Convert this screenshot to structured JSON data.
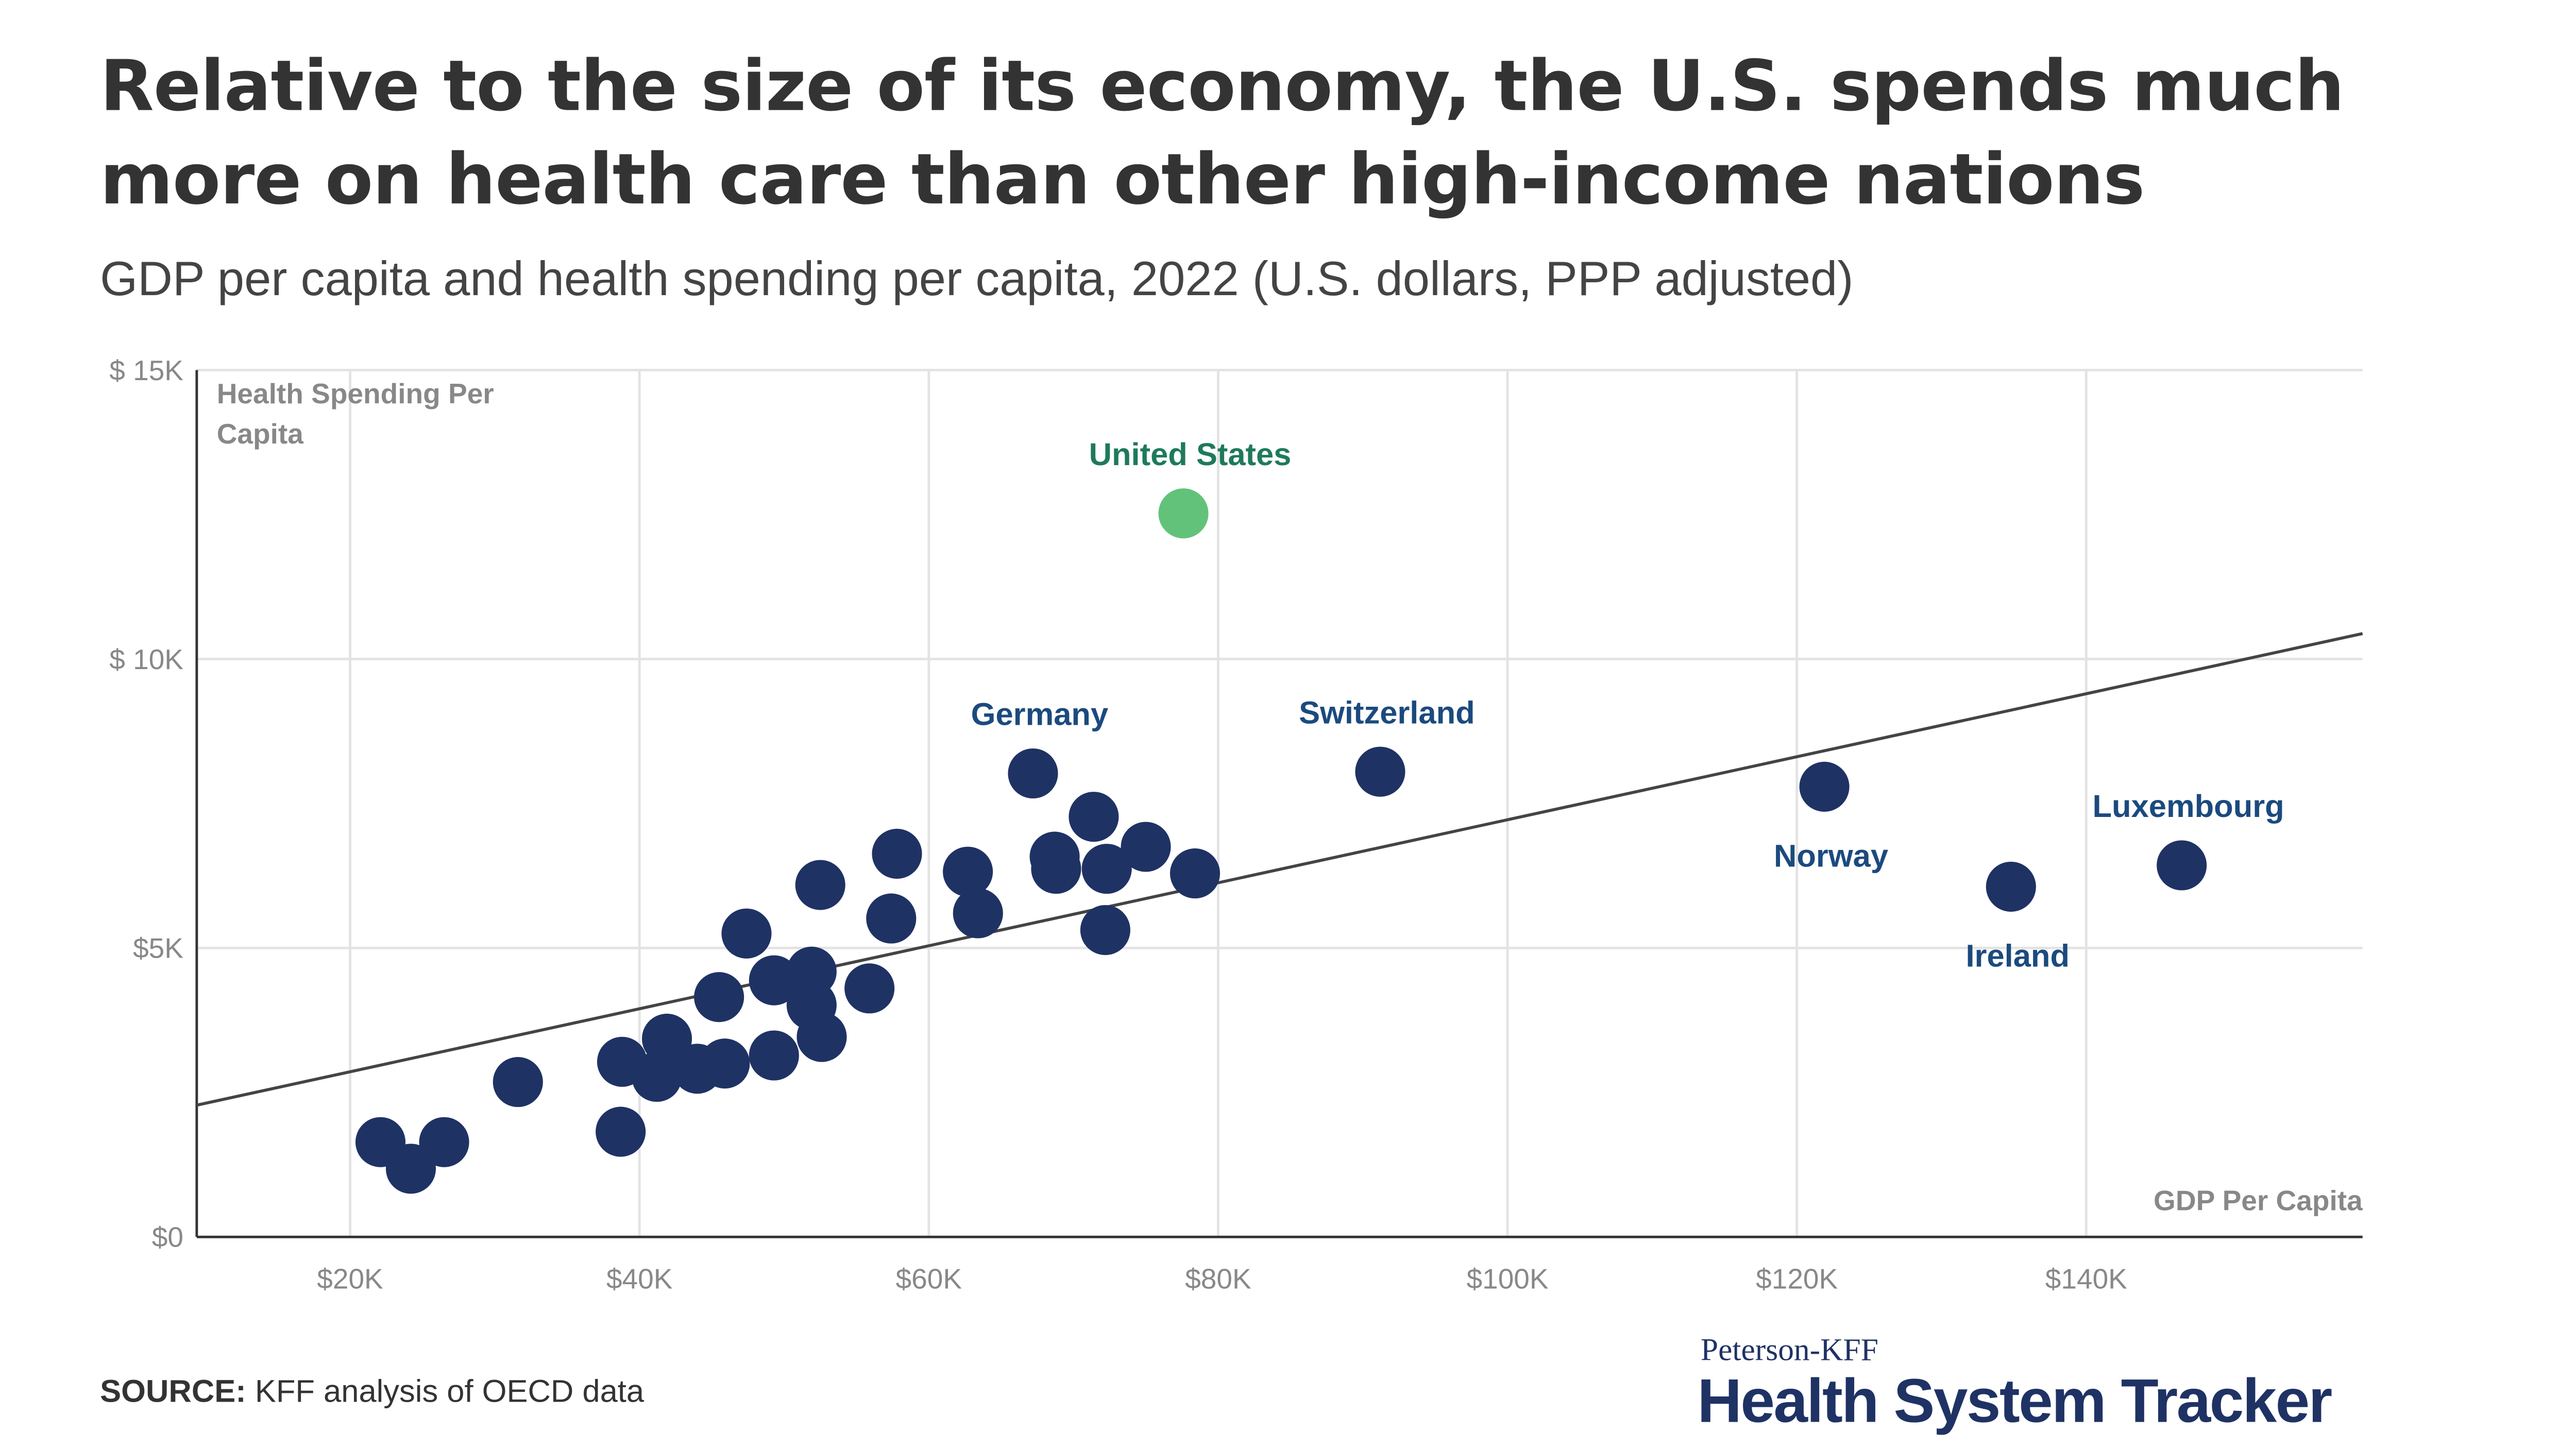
{
  "chart_data": {
    "type": "scatter",
    "title": "Relative to the size of its economy, the U.S. spends much more on health care than other high-income nations",
    "subtitle": "GDP per capita and health spending per capita, 2022 (U.S. dollars, PPP adjusted)",
    "y_label": "Health Spending Per Capita",
    "x_label": "GDP Per Capita",
    "source_label": "SOURCE:",
    "source": "KFF analysis of OECD data",
    "logo_top": "Peterson-KFF",
    "logo_name": "Health System Tracker",
    "xlim": [
      9400,
      159100
    ],
    "ylim": [
      0,
      15000
    ],
    "xticks": [
      {
        "value": 20000,
        "label": "$20K"
      },
      {
        "value": 40000,
        "label": "$40K"
      },
      {
        "value": 60000,
        "label": "$60K"
      },
      {
        "value": 80000,
        "label": "$80K"
      },
      {
        "value": 100000,
        "label": "$100K"
      },
      {
        "value": 120000,
        "label": "$120K"
      },
      {
        "value": 140000,
        "label": "$140K"
      }
    ],
    "yticks": [
      {
        "value": 0,
        "label": "$0"
      },
      {
        "value": 5000,
        "label": "$5K"
      },
      {
        "value": 10000,
        "label": "$ 10K"
      },
      {
        "value": 15000,
        "label": "$ 15K"
      }
    ],
    "grid": true,
    "color": "#1f3264",
    "highlight_color": "#63c27a",
    "label_color": "#1b4a7e",
    "highlight_label_color": "#1e7a5a",
    "trend_line": {
      "x": [
        9400,
        159100
      ],
      "y": [
        2280,
        10440
      ],
      "color": "#444"
    },
    "points": [
      {
        "x": 77600,
        "y": 12520,
        "label": "United States",
        "highlight": true
      },
      {
        "x": 67200,
        "y": 8020,
        "label": "Germany"
      },
      {
        "x": 91200,
        "y": 8050,
        "label": "Switzerland"
      },
      {
        "x": 121900,
        "y": 7790,
        "label": "Norway",
        "label_position": "below"
      },
      {
        "x": 134800,
        "y": 6060,
        "label": "Ireland",
        "label_position": "below"
      },
      {
        "x": 146600,
        "y": 6430,
        "label": "Luxembourg"
      },
      {
        "x": 22100,
        "y": 1640
      },
      {
        "x": 24200,
        "y": 1180
      },
      {
        "x": 26500,
        "y": 1640
      },
      {
        "x": 31600,
        "y": 2680
      },
      {
        "x": 38700,
        "y": 1820
      },
      {
        "x": 38800,
        "y": 3030
      },
      {
        "x": 41200,
        "y": 2770
      },
      {
        "x": 41900,
        "y": 3430
      },
      {
        "x": 44000,
        "y": 2910
      },
      {
        "x": 45900,
        "y": 3000
      },
      {
        "x": 45500,
        "y": 4150
      },
      {
        "x": 47400,
        "y": 5250
      },
      {
        "x": 49300,
        "y": 3140
      },
      {
        "x": 49300,
        "y": 4440
      },
      {
        "x": 51900,
        "y": 4590
      },
      {
        "x": 51900,
        "y": 4010
      },
      {
        "x": 52600,
        "y": 3460
      },
      {
        "x": 52500,
        "y": 6090
      },
      {
        "x": 55900,
        "y": 4300
      },
      {
        "x": 57400,
        "y": 5510
      },
      {
        "x": 57800,
        "y": 6630
      },
      {
        "x": 62700,
        "y": 6320
      },
      {
        "x": 63400,
        "y": 5600
      },
      {
        "x": 68700,
        "y": 6580
      },
      {
        "x": 68800,
        "y": 6370
      },
      {
        "x": 71400,
        "y": 7270
      },
      {
        "x": 72300,
        "y": 6370
      },
      {
        "x": 72200,
        "y": 5310
      },
      {
        "x": 75000,
        "y": 6750
      },
      {
        "x": 78400,
        "y": 6290
      }
    ]
  }
}
